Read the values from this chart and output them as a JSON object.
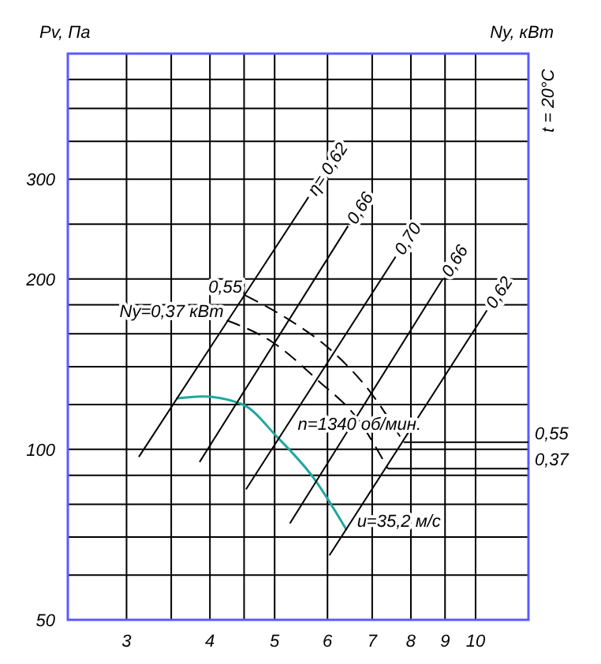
{
  "chart_data": {
    "type": "line",
    "ylabel": "Pv, Па",
    "y2label": "Ny, кВт",
    "log": "xy",
    "grid": true,
    "xlim": [
      2.45,
      12
    ],
    "ylim": [
      50,
      500
    ],
    "xticks": [
      3,
      {
        "value": 3.5,
        "label": null
      },
      4,
      {
        "value": 4.5,
        "label": null
      },
      5,
      6,
      7,
      8,
      9,
      10
    ],
    "yticks": [
      50,
      {
        "value": 60,
        "label": null
      },
      {
        "value": 70,
        "label": null
      },
      {
        "value": 80,
        "label": null
      },
      {
        "value": 90,
        "label": null
      },
      100,
      {
        "value": 120,
        "label": null
      },
      {
        "value": 140,
        "label": null
      },
      {
        "value": 160,
        "label": null
      },
      {
        "value": 180,
        "label": null
      },
      200,
      {
        "value": 250,
        "label": null
      },
      300,
      {
        "value": 350,
        "label": null
      },
      {
        "value": 400,
        "label": null
      },
      {
        "value": 450,
        "label": null
      }
    ],
    "series": [
      {
        "color": "#20a89c",
        "x": [
          3.56,
          3.9,
          4.48,
          5.05,
          5.72,
          6.41
        ],
        "values": [
          123,
          124,
          120,
          105,
          89,
          72
        ],
        "line_style": "solid"
      },
      {
        "name": "η= 0,62",
        "color": "#000000",
        "x": [
          3.13,
          5.62
        ],
        "values": [
          97,
          279
        ],
        "line_style": "solid"
      },
      {
        "name": "0,66",
        "color": "#000000",
        "x": [
          3.86,
          6.44
        ],
        "values": [
          95,
          248
        ],
        "line_style": "solid"
      },
      {
        "name": "0,70",
        "color": "#000000",
        "x": [
          4.53,
          7.59
        ],
        "values": [
          85,
          219
        ],
        "line_style": "solid"
      },
      {
        "name": "0,66",
        "color": "#000000",
        "x": [
          5.27,
          8.93
        ],
        "values": [
          74,
          200
        ],
        "line_style": "solid"
      },
      {
        "name": "0,62",
        "color": "#000000",
        "x": [
          6.04,
          10.4
        ],
        "values": [
          65,
          176
        ],
        "line_style": "solid"
      },
      {
        "name": "0,55",
        "color": "#000000",
        "x": [
          4.52,
          5.23,
          6.1,
          7.0,
          7.8
        ],
        "values": [
          187,
          170,
          149,
          125,
          103
        ],
        "line_style": "dashed"
      },
      {
        "name": "Ny=0,37 кВт",
        "color": "#000000",
        "x": [
          4.24,
          4.99,
          5.78,
          6.7,
          7.39
        ],
        "values": [
          169,
          154,
          133,
          112,
          92.5
        ],
        "line_style": "dashed"
      },
      {
        "color": "#000000",
        "x": [
          7.8,
          12
        ],
        "values": [
          103,
          103
        ],
        "line_style": "solid"
      },
      {
        "color": "#000000",
        "x": [
          7.39,
          12
        ],
        "values": [
          92.5,
          92.5
        ],
        "line_style": "solid"
      }
    ],
    "annotations": [
      "t = 20°C",
      {
        "text": "n=1340 об/мин.",
        "x": 5.3,
        "y": 107
      },
      {
        "text": "u=35,2 м/с",
        "x": 6.5,
        "y": 72
      },
      {
        "text": "0,55",
        "x": 12,
        "y": 103
      },
      {
        "text": "0,37",
        "x": 12,
        "y": 92.5
      }
    ]
  }
}
